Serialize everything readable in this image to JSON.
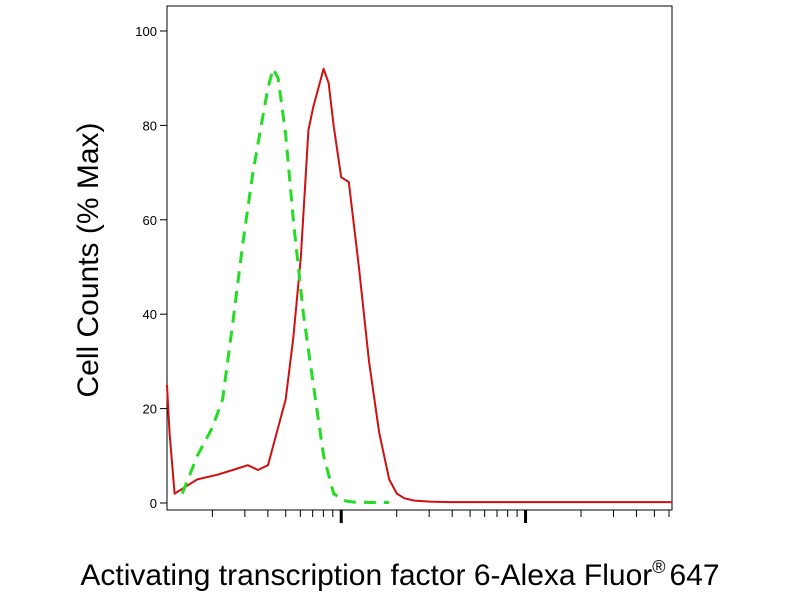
{
  "chart_data": {
    "type": "line",
    "title": "",
    "xlabel": "Activating transcription factor 6-Alexa Fluor",
    "xlabel_superscript": "®",
    "xlabel_suffix": "647",
    "ylabel": "Cell Counts (% Max)",
    "ylim": [
      0,
      105
    ],
    "xlim": [
      0,
      1
    ],
    "x_scale": "log",
    "grid": false,
    "y_ticks": [
      0,
      20,
      40,
      60,
      80,
      100
    ],
    "series": [
      {
        "color": "#d01010",
        "style": "solid",
        "x": [
          0.0,
          0.005,
          0.015,
          0.03,
          0.06,
          0.1,
          0.13,
          0.16,
          0.18,
          0.2,
          0.215,
          0.235,
          0.25,
          0.265,
          0.275,
          0.28,
          0.29,
          0.3,
          0.31,
          0.32,
          0.33,
          0.345,
          0.36,
          0.38,
          0.4,
          0.42,
          0.44,
          0.455,
          0.47,
          0.49,
          0.52,
          0.56,
          1.0
        ],
        "y": [
          25,
          15,
          2,
          3,
          5,
          6,
          7,
          8,
          7,
          8,
          14,
          22,
          35,
          52,
          70,
          79,
          84,
          88,
          92,
          89,
          80,
          69,
          68,
          50,
          30,
          15,
          5,
          2,
          1,
          0.5,
          0.3,
          0.2,
          0.2
        ]
      },
      {
        "color": "#22dd22",
        "style": "dashed",
        "x": [
          0.03,
          0.06,
          0.09,
          0.11,
          0.13,
          0.15,
          0.17,
          0.19,
          0.2,
          0.21,
          0.22,
          0.235,
          0.25,
          0.27,
          0.29,
          0.31,
          0.33,
          0.35,
          0.37,
          0.4,
          0.44
        ],
        "y": [
          2,
          10,
          16,
          22,
          38,
          55,
          70,
          82,
          88,
          92,
          90,
          78,
          60,
          40,
          25,
          10,
          2,
          0.5,
          0.2,
          0.1,
          0.1
        ]
      }
    ]
  }
}
